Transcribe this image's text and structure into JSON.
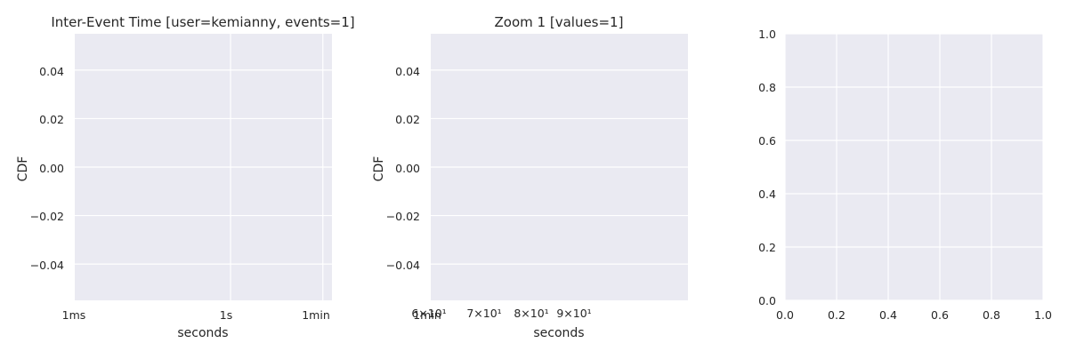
{
  "chart_data": [
    {
      "type": "line",
      "title": "Inter-Event Time [user=kemianny, events=1]",
      "xlabel": "seconds",
      "ylabel": "CDF",
      "xscale": "log",
      "grid": true,
      "x_ticks": [
        "1ms",
        "1s",
        "1min"
      ],
      "x_tick_values": [
        0.001,
        1,
        60
      ],
      "y_ticks": [
        "0.04",
        "0.02",
        "0.00",
        "−0.02",
        "−0.04"
      ],
      "y_tick_values": [
        0.04,
        0.02,
        0.0,
        -0.02,
        -0.04
      ],
      "ylim": [
        -0.055,
        0.055
      ],
      "series": []
    },
    {
      "type": "line",
      "title": "Zoom 1 [values=1]",
      "xlabel": "seconds",
      "ylabel": "CDF",
      "xscale": "log",
      "grid": true,
      "x_ticks": [
        "1min",
        "6×10¹",
        "7×10¹",
        "8×10¹",
        "9×10¹"
      ],
      "x_tick_values": [
        60,
        60,
        70,
        80,
        90
      ],
      "y_ticks": [
        "0.04",
        "0.02",
        "0.00",
        "−0.02",
        "−0.04"
      ],
      "y_tick_values": [
        0.04,
        0.02,
        0.0,
        -0.02,
        -0.04
      ],
      "ylim": [
        -0.055,
        0.055
      ],
      "series": []
    },
    {
      "type": "line",
      "title": "",
      "xlabel": "",
      "ylabel": "",
      "grid": true,
      "x_ticks": [
        "0.0",
        "0.2",
        "0.4",
        "0.6",
        "0.8",
        "1.0"
      ],
      "x_tick_values": [
        0,
        0.2,
        0.4,
        0.6,
        0.8,
        1.0
      ],
      "y_ticks": [
        "1.0",
        "0.8",
        "0.6",
        "0.4",
        "0.2",
        "0.0"
      ],
      "y_tick_values": [
        1.0,
        0.8,
        0.6,
        0.4,
        0.2,
        0.0
      ],
      "xlim": [
        0,
        1
      ],
      "ylim": [
        0,
        1
      ],
      "series": []
    }
  ]
}
